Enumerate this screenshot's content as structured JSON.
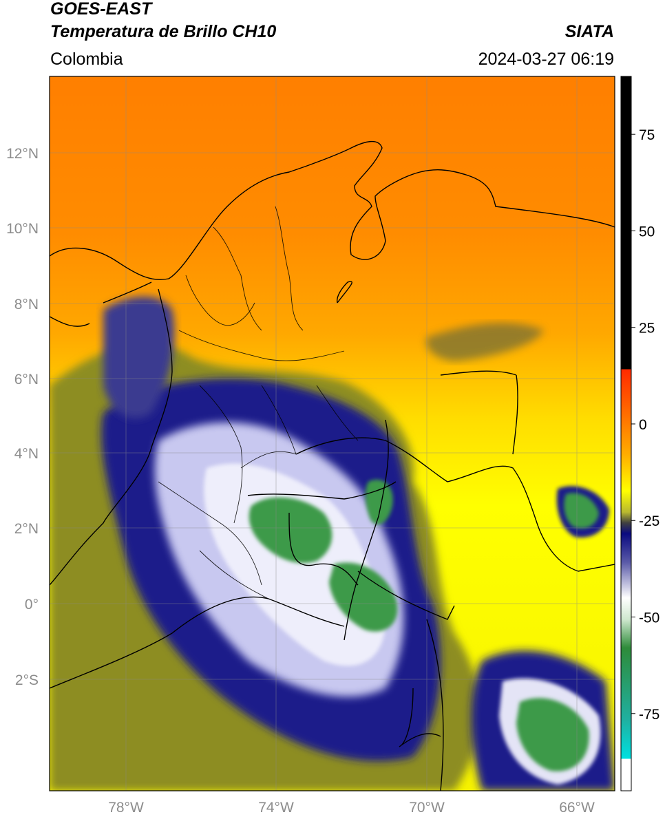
{
  "header": {
    "satellite": "GOES-EAST",
    "product": "Temperatura de Brillo CH10",
    "region": "Colombia",
    "agency": "SIATA",
    "timestamp": "2024-03-27 06:19"
  },
  "map": {
    "lon_range": [
      -80,
      -65
    ],
    "lat_range": [
      -5,
      14
    ],
    "lat_tick_labels": [
      "12°N",
      "10°N",
      "8°N",
      "6°N",
      "4°N",
      "2°N",
      "0°",
      "2°S"
    ],
    "lon_tick_labels": [
      "78°W",
      "74°W",
      "70°W",
      "66°W"
    ],
    "gridlines": true
  },
  "colorbar": {
    "unit_hint": "°C",
    "tick_labels": [
      "75",
      "50",
      "25",
      "0",
      "-25",
      "-50",
      "-75"
    ],
    "tick_values": [
      75,
      50,
      25,
      0,
      -25,
      -50,
      -75
    ],
    "range": [
      -95,
      90
    ],
    "colors": {
      "black": "#000000",
      "red": "#ff2a00",
      "orange": "#ff8c00",
      "yellow": "#ffff00",
      "olive": "#8a8a1c",
      "navy": "#0a0a80",
      "white": "#ffffff",
      "green": "#2e8b3a",
      "cyan": "#00e0e0"
    }
  }
}
